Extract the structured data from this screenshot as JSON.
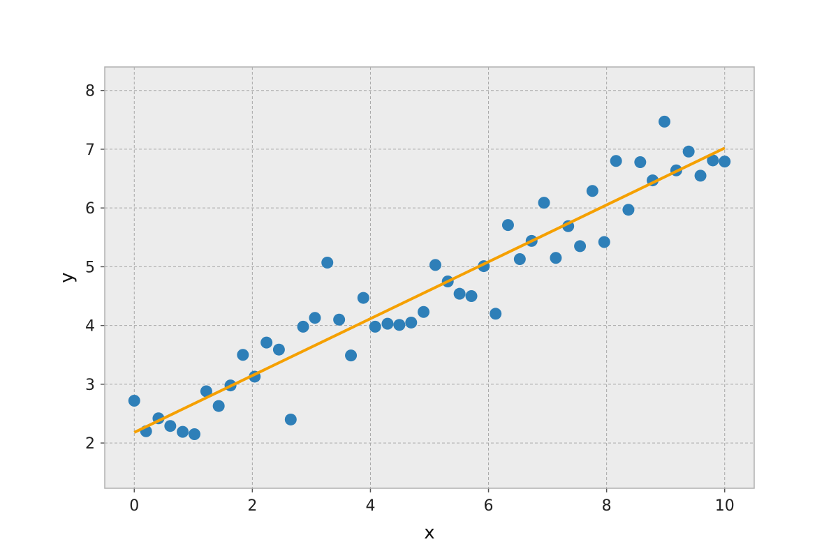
{
  "chart_data": {
    "type": "scatter",
    "title": "",
    "xlabel": "x",
    "ylabel": "y",
    "xlim": [
      -0.5,
      10.5
    ],
    "ylim": [
      1.23,
      8.4
    ],
    "xticks": [
      0,
      2,
      4,
      6,
      8,
      10
    ],
    "yticks": [
      2,
      3,
      4,
      5,
      6,
      7,
      8
    ],
    "grid": true,
    "legend": "none",
    "colors": {
      "background": "#ececec",
      "points": "#2e7fb8",
      "fit_line": "#f5a000",
      "grid": "#a8a8a8",
      "frame": "#b0b0b0"
    },
    "series": [
      {
        "type": "scatter",
        "x": [
          0,
          0.2,
          0.41,
          0.61,
          0.82,
          1.02,
          1.22,
          1.43,
          1.63,
          1.84,
          2.04,
          2.24,
          2.45,
          2.65,
          2.86,
          3.06,
          3.27,
          3.47,
          3.67,
          3.88,
          4.08,
          4.29,
          4.49,
          4.69,
          4.9,
          5.1,
          5.31,
          5.51,
          5.71,
          5.92,
          6.12,
          6.33,
          6.53,
          6.73,
          6.94,
          7.14,
          7.35,
          7.55,
          7.76,
          7.96,
          8.16,
          8.37,
          8.57,
          8.78,
          8.98,
          9.18,
          9.39,
          9.59,
          9.8,
          10
        ],
        "y": [
          2.72,
          2.2,
          2.42,
          2.29,
          2.19,
          2.15,
          2.88,
          2.63,
          2.98,
          3.5,
          3.13,
          3.71,
          3.59,
          2.4,
          3.98,
          4.13,
          5.07,
          4.1,
          3.49,
          4.47,
          3.98,
          4.03,
          4.01,
          4.05,
          4.23,
          5.03,
          4.75,
          4.54,
          4.5,
          5.01,
          4.2,
          5.71,
          5.13,
          5.44,
          6.09,
          5.15,
          5.69,
          5.35,
          6.29,
          5.42,
          6.8,
          5.97,
          6.78,
          6.47,
          7.47,
          6.64,
          6.96,
          6.55,
          6.81,
          6.79
        ]
      },
      {
        "type": "line",
        "x": [
          0,
          10
        ],
        "y": [
          2.18,
          7.02
        ]
      }
    ]
  }
}
